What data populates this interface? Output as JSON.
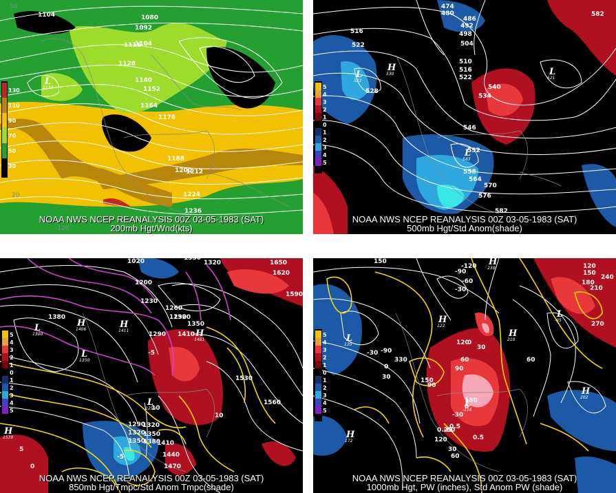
{
  "title": "00Z 03-05-1983 (SAT)",
  "panels": [
    {
      "id": "p1",
      "caption_line1": "NOAA NWS NCEP REANALYSIS 00Z 03-05-1983 (SAT)",
      "caption_line2": "200mb Hgt/Wnd(kts)",
      "colorbar": [
        "130",
        "110",
        "90",
        "70",
        "50",
        "30"
      ],
      "contour_labels": [
        "1104",
        "1080",
        "1092",
        "1104",
        "1116",
        "1128",
        "1140",
        "1152",
        "1164",
        "1176",
        "1188",
        "1200",
        "1212",
        "1224",
        "1236"
      ],
      "lows": [
        {
          "letter": "L",
          "value": "1124"
        }
      ],
      "grid_labels": [
        "50",
        "20",
        "-120"
      ]
    },
    {
      "id": "p2",
      "caption_line1": "NOAA NWS NCEP REANALYSIS 00Z 03-05-1983 (SAT)",
      "caption_line2": "500mb Hgt/Std Anom(shade)",
      "colorbar": [
        "5",
        "4",
        "3",
        "2",
        "1",
        "0",
        "1",
        "2",
        "3",
        "4",
        "5"
      ],
      "contour_labels": [
        "474",
        "480",
        "486",
        "492",
        "498",
        "504",
        "510",
        "516",
        "522",
        "528",
        "534",
        "540",
        "546",
        "552",
        "558",
        "564",
        "570",
        "576",
        "582",
        "516",
        "522",
        "582"
      ],
      "highs": [
        {
          "letter": "H",
          "value": "530"
        }
      ],
      "lows": [
        {
          "letter": "L",
          "value": "522"
        },
        {
          "letter": "L",
          "value": "521"
        },
        {
          "letter": "L",
          "value": "543"
        }
      ]
    },
    {
      "id": "p3",
      "caption_line1": "NOAA NWS NCEP REANALYSIS 00Z 03-05-1983 (SAT)",
      "caption_line2": "850mb Hgt/Tmpc/Std Anom Tmpc(shade)",
      "colorbar": [
        "5",
        "4",
        "3",
        "2",
        "1",
        "0",
        "1",
        "2",
        "3",
        "4",
        "5"
      ],
      "contour_labels": [
        "1020",
        "1350",
        "1320",
        "1650",
        "1620",
        "1590",
        "1200",
        "1230",
        "1260",
        "1290",
        "1320",
        "1350",
        "1380",
        "1410",
        "1290",
        "1320",
        "1350",
        "1380",
        "1410",
        "1440",
        "1470",
        "1530",
        "1560",
        "1290",
        "1320",
        "1350",
        "-5",
        "-5",
        "10",
        "10",
        "5",
        "0"
      ],
      "highs": [
        {
          "letter": "H",
          "value": "1406"
        },
        {
          "letter": "H",
          "value": "1411"
        },
        {
          "letter": "H",
          "value": "1461"
        },
        {
          "letter": "H",
          "value": "1539"
        }
      ],
      "lows": [
        {
          "letter": "L",
          "value": "1300"
        },
        {
          "letter": "L",
          "value": "1350"
        },
        {
          "letter": "L",
          "value": "1259"
        }
      ]
    },
    {
      "id": "p4",
      "caption_line1": "NOAA NWS NCEP REANALYSIS 00Z 03-05-1983 (SAT)",
      "caption_line2": "1000mb Hgt, PW (inches), Std Anom PW (shade)",
      "colorbar": [
        "5",
        "4",
        "3",
        "2",
        "1",
        "0",
        "1",
        "2",
        "3",
        "4",
        "5"
      ],
      "contour_labels": [
        "150",
        "-120",
        "-90",
        "-60",
        "-30",
        "0",
        "30",
        "60",
        "90",
        "120",
        "150",
        "180",
        "210",
        "240",
        "270",
        "330",
        "-90",
        "-30",
        "0",
        "30",
        "60",
        "90",
        "120",
        "150",
        "180",
        "0.5",
        "0.5",
        "0.25",
        "120",
        "-60",
        "-30",
        "0",
        "30",
        "60"
      ],
      "highs": [
        {
          "letter": "H",
          "value": "122"
        },
        {
          "letter": "H",
          "value": "210"
        },
        {
          "letter": "H",
          "value": "202"
        },
        {
          "letter": "H",
          "value": "172"
        },
        {
          "letter": "H",
          "value": "238"
        }
      ],
      "lows": [
        {
          "letter": "L",
          "value": "120"
        },
        {
          "letter": "L",
          "value": "-95"
        },
        {
          "letter": "L",
          "value": "-116"
        }
      ]
    }
  ],
  "colors": {
    "background": "#000000",
    "contour": "#ffffff",
    "jet_strong": "#c0281c",
    "jet_core": "#b8860b",
    "jet_mid": "#f2c200",
    "wind_light": "#9ddc2b",
    "wind_low": "#24a030",
    "anom_warm": "#b01020",
    "anom_hot": "#e8383c",
    "anom_cold": "#1c5aa8",
    "anom_cool": "#2fa8e0",
    "anom_cyan": "#38e8e8",
    "temp_line": "#f5d800",
    "neg_temp_line": "#d040d0",
    "pw_pink": "#f4a8b8"
  }
}
